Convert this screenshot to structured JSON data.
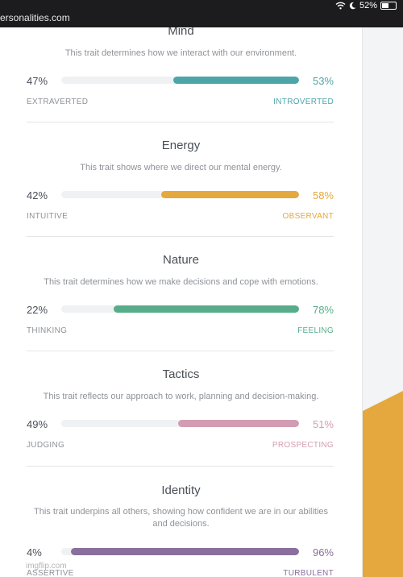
{
  "status_bar": {
    "url_text": "ersonalities.com",
    "battery": "52%",
    "battery_level": 0.52,
    "icons": [
      "wifi-icon",
      "moon-icon",
      "battery-icon"
    ]
  },
  "traits": [
    {
      "title": "Mind",
      "description": "This trait determines how we interact with our environment.",
      "left_percent": "47%",
      "right_percent": "53%",
      "left_label": "EXTRAVERTED",
      "right_label": "INTROVERTED",
      "right_value": 53,
      "color": "#4ea5a9"
    },
    {
      "title": "Energy",
      "description": "This trait shows where we direct our mental energy.",
      "left_percent": "42%",
      "right_percent": "58%",
      "left_label": "INTUITIVE",
      "right_label": "OBSERVANT",
      "right_value": 58,
      "color": "#e4a83f"
    },
    {
      "title": "Nature",
      "description": "This trait determines how we make decisions and cope with emotions.",
      "left_percent": "22%",
      "right_percent": "78%",
      "left_label": "THINKING",
      "right_label": "FEELING",
      "right_value": 78,
      "color": "#57ad8a"
    },
    {
      "title": "Tactics",
      "description": "This trait reflects our approach to work, planning and decision-making.",
      "left_percent": "49%",
      "right_percent": "51%",
      "left_label": "JUDGING",
      "right_label": "PROSPECTING",
      "right_value": 51,
      "color": "#d29db2"
    },
    {
      "title": "Identity",
      "description": "This trait underpins all others, showing how confident we are in our abilities and decisions.",
      "left_percent": "4%",
      "right_percent": "96%",
      "left_label": "ASSERTIVE",
      "right_label": "TURBULENT",
      "right_value": 96,
      "color": "#8a6e9c"
    }
  ],
  "watermark": "imgflip.com",
  "accent_panel_color": "#e4a83f"
}
